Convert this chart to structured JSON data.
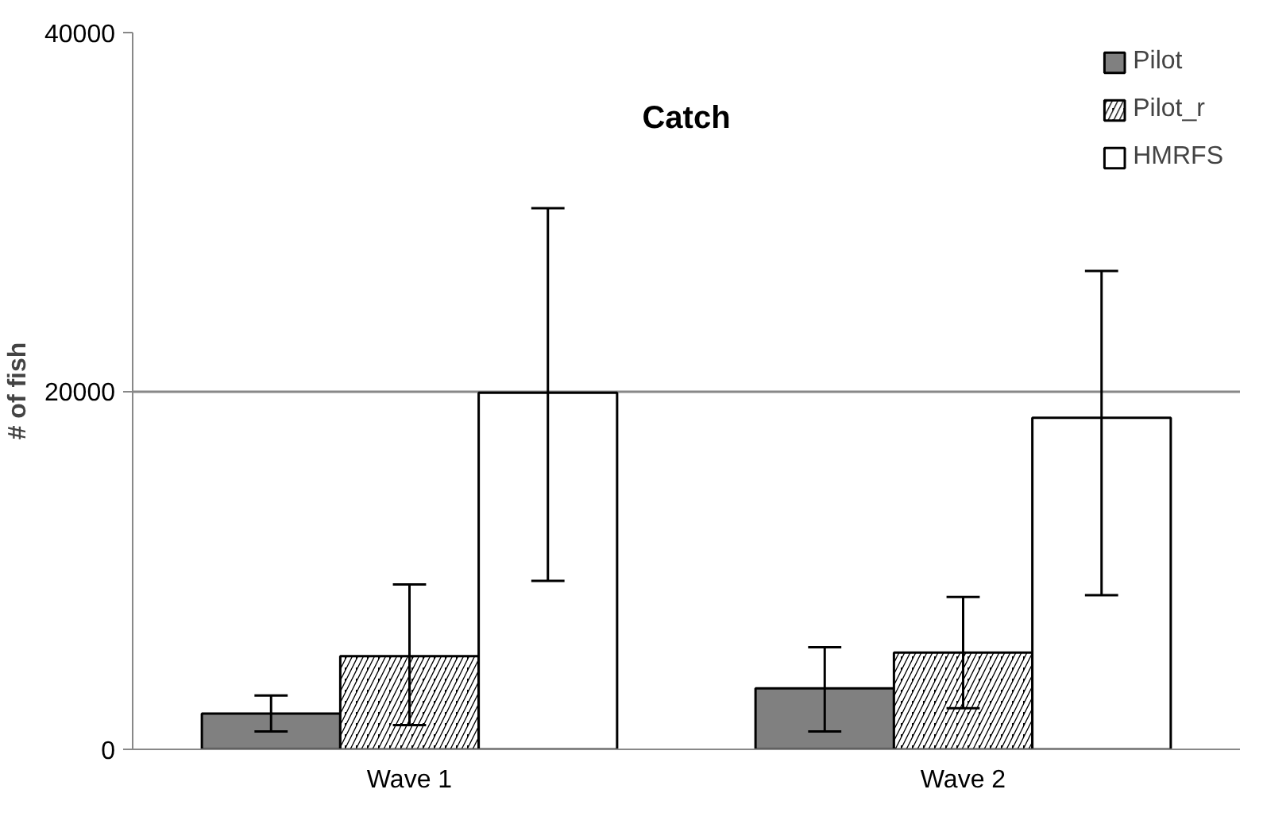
{
  "chart_data": {
    "type": "bar",
    "title": "Catch",
    "ylabel": "# of fish",
    "categories": [
      "Wave 1",
      "Wave 2"
    ],
    "series": [
      {
        "name": "Pilot",
        "color": "#808080",
        "values": [
          2000,
          3400
        ],
        "errors": [
          [
            1000,
            3000
          ],
          [
            1000,
            5700
          ]
        ]
      },
      {
        "name": "Pilot_r",
        "color": "#000000",
        "values": [
          5200,
          5400
        ],
        "errors": [
          [
            1350,
            9200
          ],
          [
            2300,
            8500
          ]
        ]
      },
      {
        "name": "HMRFS",
        "color": "#ffffff",
        "values": [
          19900,
          18500
        ],
        "errors": [
          [
            9400,
            30200
          ],
          [
            8600,
            26700
          ]
        ]
      }
    ],
    "ylim": [
      0,
      40000
    ],
    "yticks": [
      0,
      20000,
      40000
    ],
    "grid": "y",
    "legend": "top right"
  }
}
